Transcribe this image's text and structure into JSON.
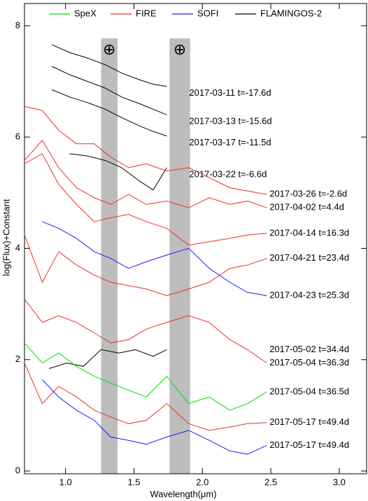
{
  "chart_data": {
    "type": "line",
    "xlabel": "Wavelength(μm)",
    "ylabel": "log(Flux)+Constant",
    "xlim": [
      0.7,
      3.2
    ],
    "ylim": [
      -0.05,
      8.4
    ],
    "xticks": [
      {
        "value": 1.0,
        "label": "1.0"
      },
      {
        "value": 1.5,
        "label": "1.5"
      },
      {
        "value": 2.0,
        "label": "2.0"
      },
      {
        "value": 2.5,
        "label": "2.5"
      },
      {
        "value": 3.0,
        "label": "3.0"
      }
    ],
    "yticks": [
      0,
      2,
      4,
      6,
      8
    ],
    "legend": [
      {
        "name": "SpeX",
        "color": "#00e000"
      },
      {
        "name": "FIRE",
        "color": "#e8302a"
      },
      {
        "name": "SOFI",
        "color": "#1a1aff"
      },
      {
        "name": "FLAMINGOS-2",
        "color": "#000000"
      }
    ],
    "shaded_regions": [
      {
        "range": [
          1.26,
          1.38
        ],
        "label": "⊕"
      },
      {
        "range": [
          1.76,
          1.91
        ],
        "label": "⊕"
      }
    ],
    "series": [
      {
        "label": "2017-03-11 t=-17.6d",
        "color": "#000000",
        "x": [
          0.9,
          1.03,
          1.16,
          1.29,
          1.41,
          1.54,
          1.64,
          1.74
        ],
        "values": [
          7.66,
          7.52,
          7.42,
          7.3,
          7.15,
          7.03,
          6.95,
          6.91
        ]
      },
      {
        "label": "2017-03-13 t=-15.6d",
        "color": "#000000",
        "x": [
          0.9,
          1.03,
          1.16,
          1.29,
          1.41,
          1.54,
          1.64,
          1.74
        ],
        "values": [
          7.27,
          7.12,
          7.0,
          6.88,
          6.72,
          6.6,
          6.5,
          6.4
        ]
      },
      {
        "label": "2017-03-17 t=-11.5d",
        "color": "#000000",
        "x": [
          0.9,
          1.03,
          1.16,
          1.29,
          1.41,
          1.54,
          1.64,
          1.74
        ],
        "values": [
          6.85,
          6.72,
          6.62,
          6.5,
          6.35,
          6.2,
          6.1,
          6.02
        ]
      },
      {
        "label": "2017-03-22 t=-6.6d",
        "color": "#000000",
        "x": [
          1.03,
          1.16,
          1.29,
          1.41,
          1.54,
          1.64,
          1.74
        ],
        "values": [
          5.7,
          5.66,
          5.58,
          5.45,
          5.21,
          5.05,
          5.45
        ]
      },
      {
        "label": "2017-03-26 t=-2.6d",
        "color": "#e8302a",
        "x": [
          0.7,
          0.83,
          0.95,
          1.08,
          1.21,
          1.33,
          1.46,
          1.59,
          1.74,
          1.9,
          2.05,
          2.2,
          2.33,
          2.47
        ],
        "values": [
          6.55,
          6.48,
          6.12,
          5.88,
          5.88,
          5.64,
          5.45,
          5.52,
          5.39,
          5.45,
          5.27,
          5.09,
          5.03,
          4.97
        ]
      },
      {
        "label": "2017-04-02 t=4.4d",
        "color": "#e8302a",
        "x": [
          0.7,
          0.83,
          0.95,
          1.08,
          1.21,
          1.33,
          1.46,
          1.59,
          1.74,
          1.9,
          2.05,
          2.2,
          2.33,
          2.47
        ],
        "values": [
          5.58,
          5.94,
          5.45,
          5.09,
          4.91,
          4.79,
          4.97,
          4.79,
          4.85,
          4.73,
          4.91,
          4.79,
          4.85,
          4.73
        ]
      },
      {
        "label": "2017-04-14 t=16.3d",
        "color": "#e8302a",
        "x": [
          0.7,
          0.83,
          0.95,
          1.08,
          1.21,
          1.33,
          1.46,
          1.59,
          1.74,
          1.9,
          2.05,
          2.2,
          2.33,
          2.47
        ],
        "values": [
          5.52,
          5.7,
          5.15,
          4.79,
          4.48,
          4.55,
          4.61,
          4.48,
          4.36,
          4.06,
          4.12,
          4.18,
          4.24,
          4.27
        ]
      },
      {
        "label": "2017-04-21 t=23.4d",
        "color": "#e8302a",
        "x": [
          0.7,
          0.83,
          0.95,
          1.08,
          1.21,
          1.33,
          1.46,
          1.59,
          1.74,
          1.9,
          2.05,
          2.2,
          2.33,
          2.47
        ],
        "values": [
          4.24,
          3.39,
          3.94,
          3.7,
          3.52,
          3.39,
          3.33,
          3.27,
          3.15,
          3.27,
          3.39,
          3.64,
          3.7,
          3.82
        ]
      },
      {
        "label": "2017-04-23 t=25.3d",
        "color": "#1a1aff",
        "x": [
          0.83,
          0.95,
          1.08,
          1.21,
          1.33,
          1.46,
          1.59,
          1.74,
          1.9,
          2.05,
          2.2,
          2.33,
          2.47
        ],
        "values": [
          4.48,
          4.36,
          4.18,
          3.94,
          3.82,
          3.64,
          3.76,
          3.88,
          4.0,
          3.64,
          3.39,
          3.21,
          3.15
        ]
      },
      {
        "label": "2017-05-02 t=34.4d",
        "color": "#000000",
        "x": [
          0.88,
          1.01,
          1.13,
          1.26,
          1.39,
          1.51,
          1.64,
          1.74
        ],
        "values": [
          1.84,
          1.94,
          1.88,
          2.18,
          2.12,
          2.18,
          2.06,
          2.18
        ]
      },
      {
        "label": "2017-05-04 t=36.3d",
        "color": "#e8302a",
        "x": [
          0.7,
          0.83,
          0.95,
          1.08,
          1.21,
          1.33,
          1.46,
          1.59,
          1.74,
          1.9,
          2.05,
          2.2,
          2.33,
          2.47
        ],
        "values": [
          3.09,
          2.67,
          2.79,
          2.67,
          2.48,
          2.3,
          2.36,
          2.55,
          2.67,
          2.79,
          2.67,
          2.36,
          2.18,
          1.94
        ]
      },
      {
        "label": "2017-05-04 t=36.5d",
        "color": "#00e000",
        "x": [
          0.7,
          0.83,
          0.95,
          1.08,
          1.21,
          1.33,
          1.46,
          1.59,
          1.74,
          1.9,
          2.05,
          2.2,
          2.33,
          2.47
        ],
        "values": [
          2.3,
          1.94,
          2.12,
          1.88,
          1.7,
          1.58,
          1.45,
          1.33,
          1.7,
          1.21,
          1.33,
          1.09,
          1.21,
          1.42
        ]
      },
      {
        "label": "2017-05-17 t=49.4d",
        "color": "#e8302a",
        "x": [
          0.7,
          0.83,
          0.95,
          1.08,
          1.21,
          1.33,
          1.46,
          1.59,
          1.74,
          1.9,
          2.05,
          2.2,
          2.33,
          2.47
        ],
        "values": [
          1.94,
          1.21,
          1.52,
          1.33,
          1.09,
          0.97,
          0.85,
          0.91,
          1.21,
          0.85,
          0.73,
          0.79,
          0.85,
          0.87
        ]
      },
      {
        "label": "2017-05-17 t=49.4d",
        "color": "#1a1aff",
        "x": [
          0.83,
          0.95,
          1.08,
          1.21,
          1.33,
          1.46,
          1.59,
          1.74,
          1.9,
          2.05,
          2.2,
          2.33,
          2.47
        ],
        "values": [
          1.64,
          1.33,
          1.09,
          0.91,
          0.61,
          0.55,
          0.48,
          0.61,
          0.73,
          0.55,
          0.36,
          0.3,
          0.46
        ]
      }
    ]
  }
}
